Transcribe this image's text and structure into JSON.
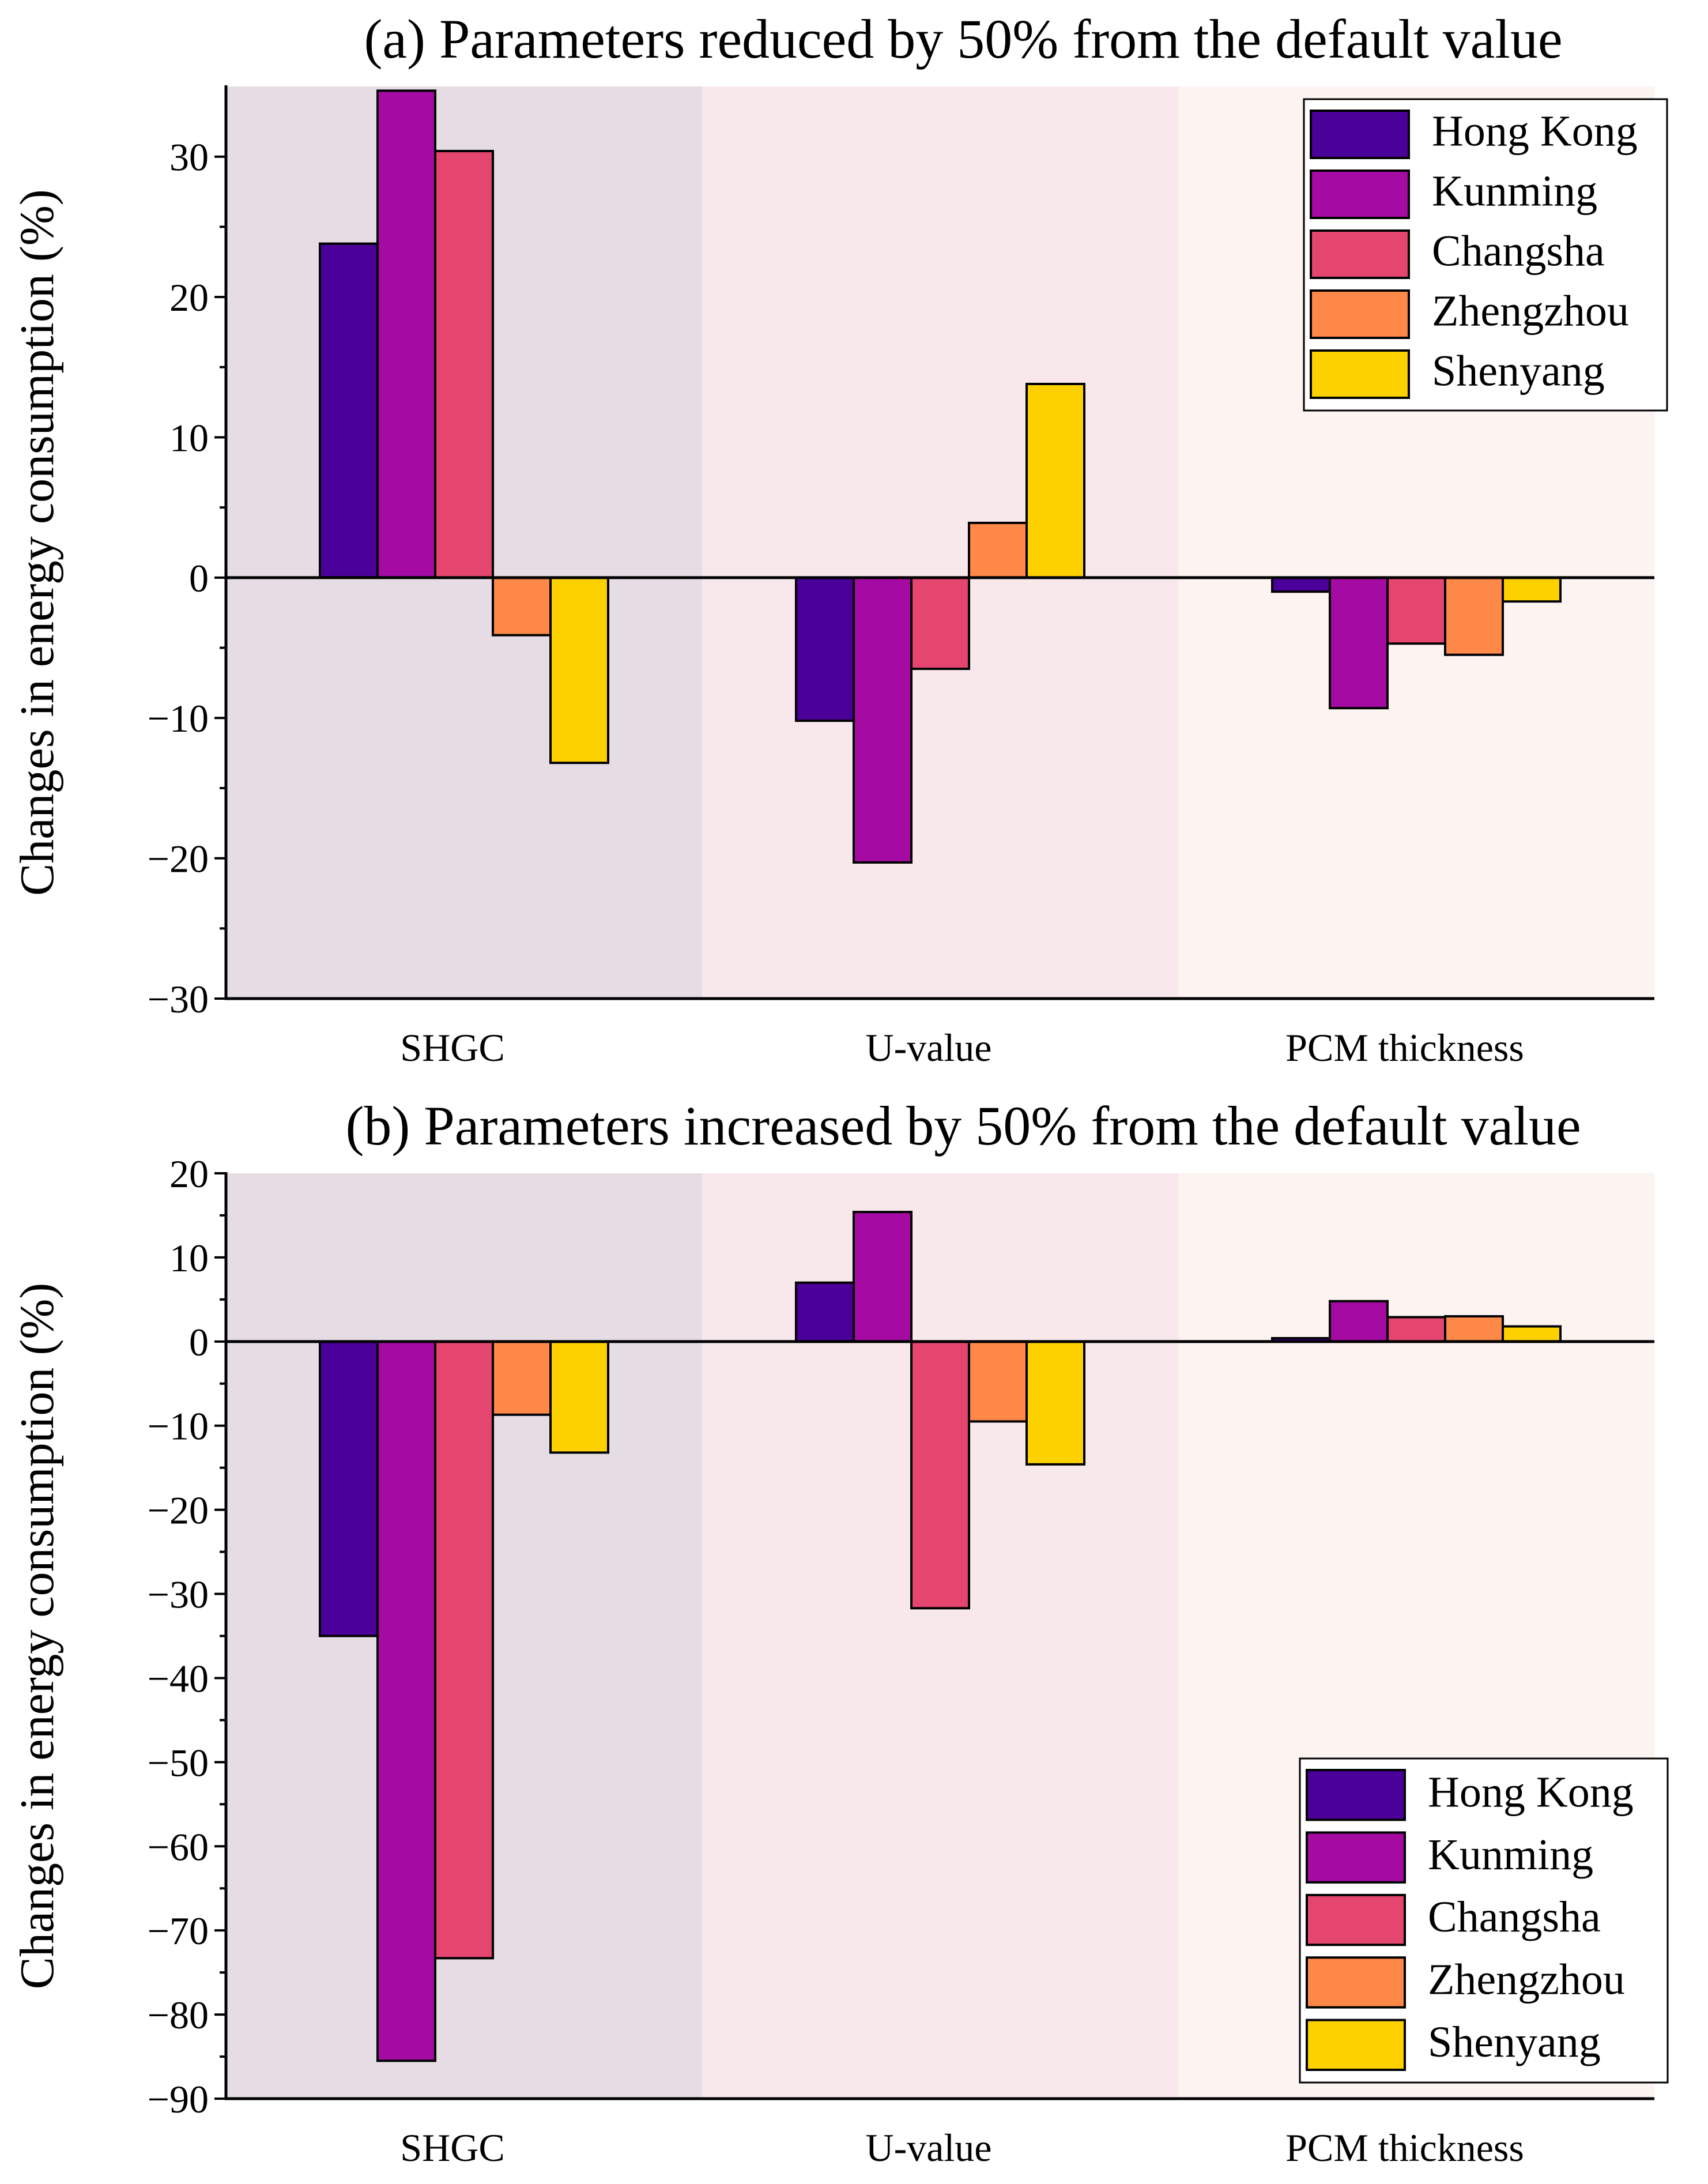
{
  "chart_data": [
    {
      "type": "bar",
      "title": "(a) Parameters reduced by 50% from the default value",
      "xlabel": "",
      "ylabel": "Changes in energy consumption (%)",
      "categories": [
        "SHGC",
        "U-value",
        "PCM thickness"
      ],
      "ylim": [
        -30,
        35
      ],
      "yticks": [
        30,
        20,
        10,
        0,
        -10,
        -20,
        -30
      ],
      "ytick_labels": [
        "30",
        "20",
        "10",
        "0",
        "−10",
        "−20",
        "−30"
      ],
      "grid": false,
      "legend_position": "top-right",
      "series": [
        {
          "name": "Hong Kong",
          "color": "#4B009A",
          "values": [
            23.8,
            -10.2,
            -1.0
          ]
        },
        {
          "name": "Kunming",
          "color": "#A50AA3",
          "values": [
            34.7,
            -20.3,
            -9.3
          ]
        },
        {
          "name": "Changsha",
          "color": "#E4466F",
          "values": [
            30.4,
            -6.5,
            -4.7
          ]
        },
        {
          "name": "Zhengzhou",
          "color": "#FD8848",
          "values": [
            -4.1,
            3.9,
            -5.5
          ]
        },
        {
          "name": "Shenyang",
          "color": "#FDD000",
          "values": [
            -13.2,
            13.8,
            -1.7
          ]
        }
      ],
      "category_bands": [
        "#E6DCE3",
        "#F8E8EB",
        "#FDF3F1"
      ]
    },
    {
      "type": "bar",
      "title": "(b) Parameters increased by 50% from the default value",
      "xlabel": "",
      "ylabel": "Changes in energy consumption (%)",
      "categories": [
        "SHGC",
        "U-value",
        "PCM thickness"
      ],
      "ylim": [
        -90,
        20
      ],
      "yticks": [
        20,
        10,
        0,
        -10,
        -20,
        -30,
        -40,
        -50,
        -60,
        -70,
        -80,
        -90
      ],
      "ytick_labels": [
        "20",
        "10",
        "0",
        "−10",
        "−20",
        "−30",
        "−40",
        "−50",
        "−60",
        "−70",
        "−80",
        "−90"
      ],
      "grid": false,
      "legend_position": "bottom-right",
      "series": [
        {
          "name": "Hong Kong",
          "color": "#4B009A",
          "values": [
            -35.0,
            7.0,
            0.4
          ]
        },
        {
          "name": "Kunming",
          "color": "#A50AA3",
          "values": [
            -85.5,
            15.4,
            4.8
          ]
        },
        {
          "name": "Changsha",
          "color": "#E4466F",
          "values": [
            -73.3,
            -31.7,
            2.9
          ]
        },
        {
          "name": "Zhengzhou",
          "color": "#FD8848",
          "values": [
            -8.7,
            -9.5,
            3.0
          ]
        },
        {
          "name": "Shenyang",
          "color": "#FDD000",
          "values": [
            -13.2,
            -14.6,
            1.8
          ]
        }
      ],
      "category_bands": [
        "#E6DCE3",
        "#F8E8EB",
        "#FDF3F1"
      ]
    }
  ]
}
